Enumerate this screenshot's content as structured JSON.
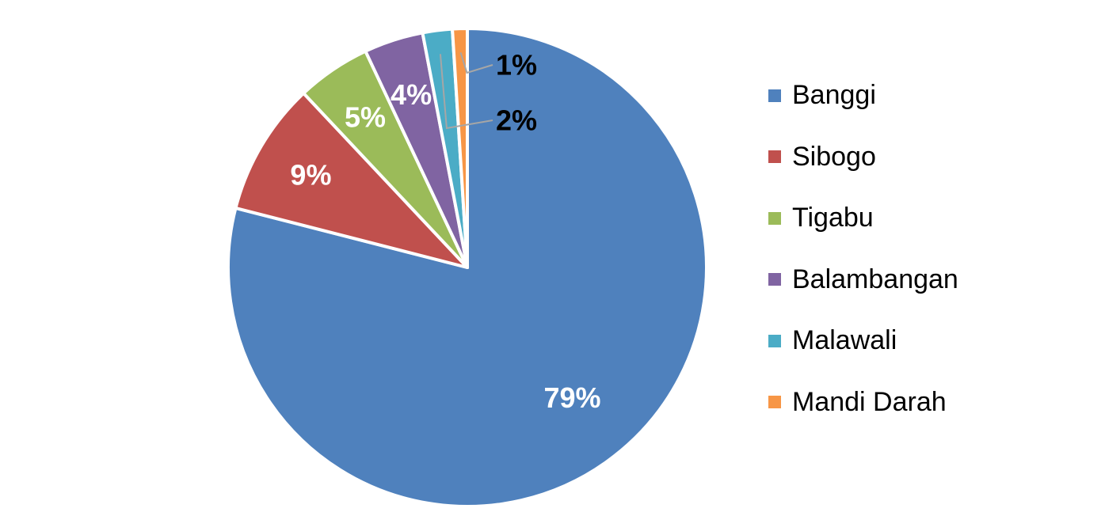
{
  "chart_data": {
    "type": "pie",
    "title": "",
    "start_angle_deg": 0,
    "direction": "clockwise",
    "legend_position": "right",
    "slices": [
      {
        "name": "Banggi",
        "value": 79,
        "label": "79%",
        "color": "#4F81BD"
      },
      {
        "name": "Sibogo",
        "value": 9,
        "label": "9%",
        "color": "#C0504D"
      },
      {
        "name": "Tigabu",
        "value": 5,
        "label": "5%",
        "color": "#9BBB59"
      },
      {
        "name": "Balambangan",
        "value": 4,
        "label": "4%",
        "color": "#8064A2"
      },
      {
        "name": "Malawali",
        "value": 2,
        "label": "2%",
        "color": "#4BACC6"
      },
      {
        "name": "Mandi Darah",
        "value": 1,
        "label": "1%",
        "color": "#F79646"
      }
    ]
  }
}
